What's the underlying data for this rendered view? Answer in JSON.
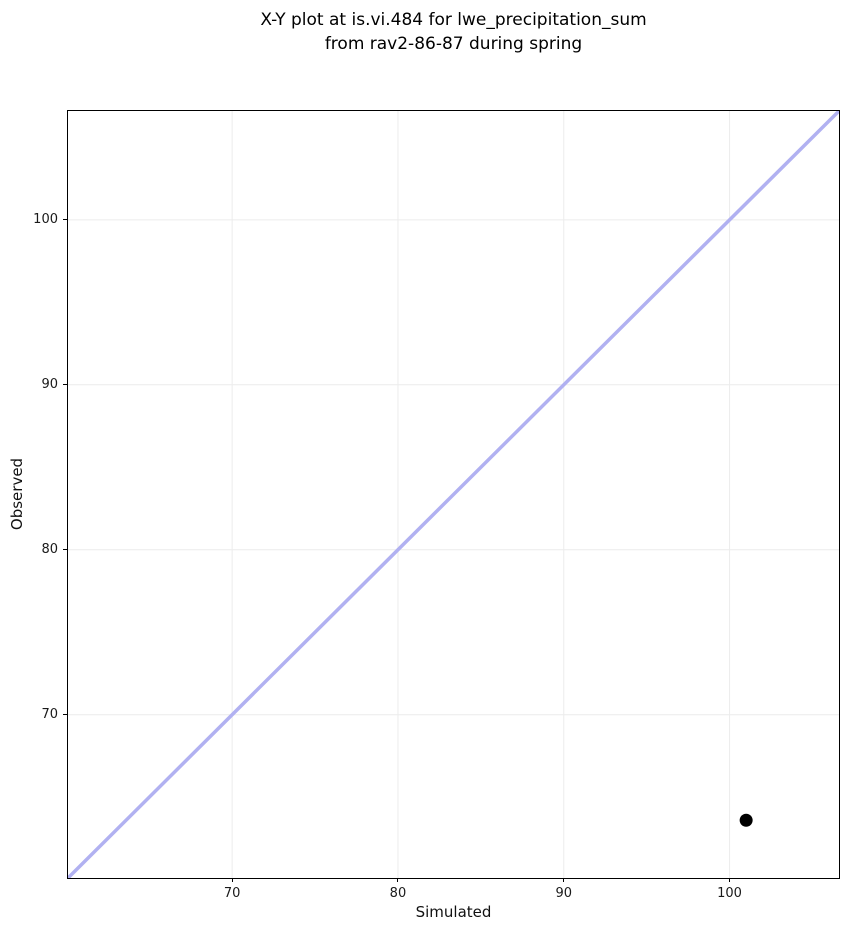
{
  "chart_data": {
    "type": "scatter",
    "title_lines": [
      "X-Y plot at is.vi.484 for lwe_precipitation_sum",
      "from rav2-86-87 during spring"
    ],
    "title": "X-Y plot at is.vi.484 for lwe_precipitation_sum from rav2-86-87 during spring",
    "xlabel": "Simulated",
    "ylabel": "Observed",
    "xlim": [
      60.1,
      106.6
    ],
    "ylim": [
      60.1,
      106.6
    ],
    "xticks": [
      70,
      80,
      90,
      100
    ],
    "yticks": [
      70,
      80,
      90,
      100
    ],
    "grid": true,
    "legend": false,
    "identity_line": {
      "x": [
        60.1,
        106.6
      ],
      "y": [
        60.1,
        106.6
      ],
      "color": "#b1b1f1",
      "width": 3.5
    },
    "series": [
      {
        "name": "observed-vs-simulated-points",
        "marker": "circle",
        "color": "#000000",
        "marker_diameter": 13,
        "points": [
          {
            "x": 101.0,
            "y": 63.6
          }
        ]
      }
    ],
    "colors": {
      "background": "#ffffff",
      "grid": "#ececec",
      "spine": "#000000",
      "tick_text": "#1a1a1a",
      "title_text": "#000000"
    }
  }
}
